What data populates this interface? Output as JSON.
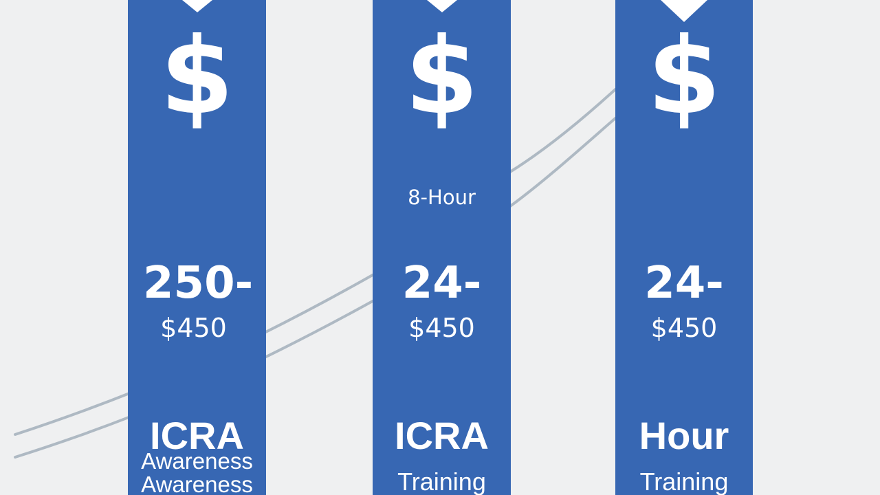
{
  "columns": [
    {
      "symbol": "$",
      "note": "",
      "range": "250-",
      "price": "$450",
      "title": "ICRA",
      "subtitle_lines": [
        "Awareness",
        "Awareness"
      ]
    },
    {
      "symbol": "$",
      "note": "8-Hour",
      "range": "24-",
      "price": "$450",
      "title": "ICRA",
      "subtitle_lines": [
        "Training"
      ]
    },
    {
      "symbol": "$",
      "note": "",
      "range": "24-",
      "price": "$450",
      "title": "Hour",
      "subtitle_lines": [
        "Training"
      ]
    }
  ],
  "colors": {
    "background": "#eff0f1",
    "banner": "#3767b3",
    "text": "#ffffff",
    "curve": "#aeb9c3"
  }
}
